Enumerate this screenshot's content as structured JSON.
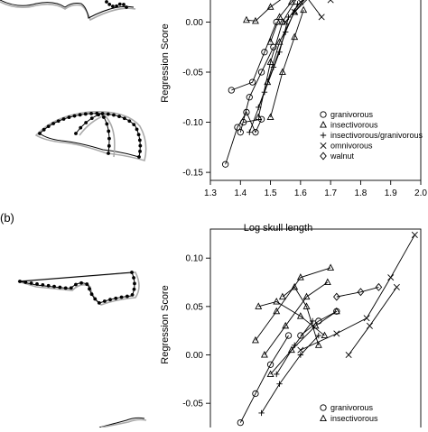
{
  "panel_labels": {
    "b": "(b)"
  },
  "chart_data": [
    {
      "type": "scatter",
      "title": "",
      "xlabel": "Log skull length",
      "ylabel": "Regression Score",
      "xlim": [
        1.3,
        2.0
      ],
      "ylim": [
        -0.15,
        0.02
      ],
      "x_ticks": [
        "1.3",
        "1.4",
        "1.5",
        "1.6",
        "1.7",
        "1.8",
        "1.9",
        "2.0"
      ],
      "y_ticks": [
        "0.00",
        "-0.05",
        "-0.10",
        "-0.15"
      ],
      "y_tick_values": [
        0.0,
        -0.05,
        -0.1,
        -0.15
      ],
      "legend_position": "bottom-right",
      "legend": [
        {
          "symbol": "circle",
          "label": "granivorous"
        },
        {
          "symbol": "triangle",
          "label": "insectivorous"
        },
        {
          "symbol": "plus",
          "label": "insectivorous/granivorous"
        },
        {
          "symbol": "cross",
          "label": "omnivorous"
        },
        {
          "symbol": "diamond",
          "label": "walnut"
        }
      ],
      "series": [
        {
          "symbol": "circle",
          "points": [
            [
              1.35,
              -0.142
            ],
            [
              1.39,
              -0.105
            ],
            [
              1.42,
              -0.09
            ],
            [
              1.45,
              -0.11
            ],
            [
              1.47,
              -0.097
            ],
            [
              1.41,
              -0.1
            ]
          ]
        },
        {
          "symbol": "circle",
          "points": [
            [
              1.37,
              -0.068
            ],
            [
              1.44,
              -0.06
            ],
            [
              1.48,
              -0.03
            ],
            [
              1.52,
              0.0
            ]
          ]
        },
        {
          "symbol": "triangle",
          "points": [
            [
              1.42,
              0.002
            ],
            [
              1.45,
              0.001
            ],
            [
              1.5,
              0.015
            ],
            [
              1.56,
              0.028
            ]
          ]
        },
        {
          "symbol": "triangle",
          "points": [
            [
              1.5,
              -0.02
            ],
            [
              1.53,
              0.005
            ],
            [
              1.57,
              0.02
            ],
            [
              1.62,
              0.03
            ]
          ]
        },
        {
          "symbol": "plus",
          "points": [
            [
              1.43,
              -0.11
            ],
            [
              1.48,
              -0.07
            ],
            [
              1.53,
              -0.03
            ],
            [
              1.56,
              0.005
            ]
          ]
        },
        {
          "symbol": "plus",
          "points": [
            [
              1.46,
              -0.085
            ],
            [
              1.51,
              -0.045
            ],
            [
              1.55,
              -0.01
            ],
            [
              1.59,
              0.018
            ]
          ]
        },
        {
          "symbol": "cross",
          "points": [
            [
              1.55,
              0.0
            ],
            [
              1.6,
              0.02
            ],
            [
              1.66,
              0.03
            ],
            [
              1.7,
              0.022
            ]
          ]
        },
        {
          "symbol": "cross",
          "points": [
            [
              1.58,
              0.01
            ],
            [
              1.62,
              0.025
            ],
            [
              1.67,
              0.005
            ]
          ]
        },
        {
          "symbol": "triangle",
          "points": [
            [
              1.49,
              -0.06
            ],
            [
              1.53,
              -0.02
            ],
            [
              1.58,
              0.01
            ],
            [
              1.63,
              0.025
            ]
          ]
        },
        {
          "symbol": "triangle",
          "points": [
            [
              1.5,
              -0.095
            ],
            [
              1.54,
              -0.05
            ],
            [
              1.58,
              -0.015
            ],
            [
              1.61,
              0.012
            ]
          ]
        },
        {
          "symbol": "circle",
          "points": [
            [
              1.4,
              -0.11
            ],
            [
              1.43,
              -0.075
            ],
            [
              1.47,
              -0.05
            ],
            [
              1.51,
              -0.025
            ]
          ]
        },
        {
          "symbol": "triangle",
          "points": [
            [
              1.46,
              -0.095
            ],
            [
              1.5,
              -0.04
            ],
            [
              1.54,
              0.0
            ],
            [
              1.6,
              0.03
            ]
          ]
        }
      ]
    },
    {
      "type": "scatter",
      "title": "",
      "xlabel": "",
      "ylabel": "Regression Score",
      "ylim": [
        -0.07,
        0.13
      ],
      "y_ticks": [
        "0.10",
        "0.05",
        "0.00",
        "-0.05"
      ],
      "y_tick_values": [
        0.1,
        0.05,
        0.0,
        -0.05
      ],
      "legend_position": "bottom-right",
      "legend": [
        {
          "symbol": "circle",
          "label": "granivorous"
        },
        {
          "symbol": "triangle",
          "label": "insectivorous"
        }
      ],
      "series": [
        {
          "symbol": "cross",
          "points": [
            [
              1.6,
              0.005
            ],
            [
              1.72,
              0.022
            ],
            [
              1.82,
              0.038
            ],
            [
              1.9,
              0.08
            ],
            [
              1.98,
              0.124
            ]
          ]
        },
        {
          "symbol": "cross",
          "points": [
            [
              1.76,
              0.0
            ],
            [
              1.83,
              0.03
            ],
            [
              1.92,
              0.07
            ]
          ]
        },
        {
          "symbol": "triangle",
          "points": [
            [
              1.45,
              0.015
            ],
            [
              1.52,
              0.045
            ],
            [
              1.6,
              0.08
            ],
            [
              1.7,
              0.09
            ]
          ]
        },
        {
          "symbol": "triangle",
          "points": [
            [
              1.48,
              0.0
            ],
            [
              1.55,
              0.03
            ],
            [
              1.62,
              0.06
            ],
            [
              1.69,
              0.075
            ]
          ]
        },
        {
          "symbol": "triangle",
          "points": [
            [
              1.5,
              -0.02
            ],
            [
              1.57,
              0.005
            ],
            [
              1.65,
              0.03
            ],
            [
              1.72,
              0.045
            ]
          ]
        },
        {
          "symbol": "triangle",
          "points": [
            [
              1.46,
              0.05
            ],
            [
              1.52,
              0.055
            ],
            [
              1.6,
              0.04
            ],
            [
              1.68,
              0.02
            ]
          ]
        },
        {
          "symbol": "circle",
          "points": [
            [
              1.4,
              -0.07
            ],
            [
              1.45,
              -0.04
            ],
            [
              1.5,
              -0.01
            ],
            [
              1.56,
              0.02
            ]
          ]
        },
        {
          "symbol": "plus",
          "points": [
            [
              1.47,
              -0.06
            ],
            [
              1.53,
              -0.03
            ],
            [
              1.6,
              0.0
            ],
            [
              1.66,
              0.02
            ]
          ]
        },
        {
          "symbol": "plus",
          "points": [
            [
              1.52,
              -0.02
            ],
            [
              1.58,
              0.01
            ],
            [
              1.64,
              0.035
            ]
          ]
        },
        {
          "symbol": "diamond",
          "points": [
            [
              1.72,
              0.06
            ],
            [
              1.8,
              0.065
            ],
            [
              1.86,
              0.07
            ]
          ]
        },
        {
          "symbol": "circle",
          "points": [
            [
              1.6,
              0.02
            ],
            [
              1.66,
              0.035
            ],
            [
              1.72,
              0.045
            ]
          ]
        },
        {
          "symbol": "triangle",
          "points": [
            [
              1.54,
              0.06
            ],
            [
              1.58,
              0.07
            ],
            [
              1.62,
              0.05
            ],
            [
              1.66,
              0.01
            ]
          ]
        }
      ]
    }
  ]
}
